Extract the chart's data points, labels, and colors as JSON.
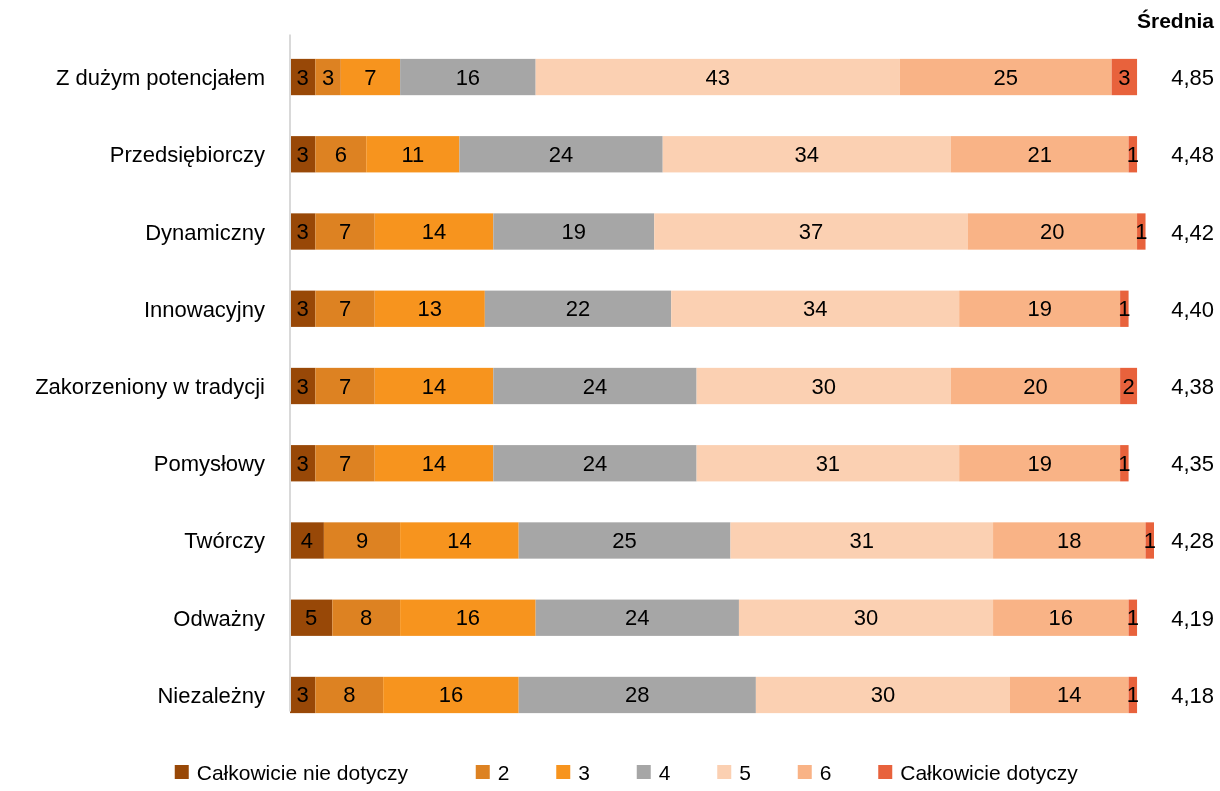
{
  "chart_data": {
    "type": "bar",
    "orientation": "horizontal",
    "stacked": true,
    "data_labels": true,
    "legend": "bottom",
    "tick_labels": "y",
    "categories": [
      "Z dużym potencjałem",
      "Przedsiębiorczy",
      "Dynamiczny",
      "Innowacyjny",
      "Zakorzeniony w tradycji",
      "Pomysłowy",
      "Twórczy",
      "Odważny",
      "Niezależny"
    ],
    "series": [
      {
        "name": "Całkowicie nie dotyczy",
        "color": "#984807",
        "values": [
          3,
          3,
          3,
          3,
          3,
          3,
          4,
          5,
          3
        ]
      },
      {
        "name": "2",
        "color": "#dd8222",
        "values": [
          3,
          6,
          7,
          7,
          7,
          7,
          9,
          8,
          8
        ]
      },
      {
        "name": "3",
        "color": "#f7941e",
        "values": [
          7,
          11,
          14,
          13,
          14,
          14,
          14,
          16,
          16
        ]
      },
      {
        "name": "4",
        "color": "#a6a6a6",
        "values": [
          16,
          24,
          19,
          22,
          24,
          24,
          25,
          24,
          28
        ]
      },
      {
        "name": "5",
        "color": "#fbd0b2",
        "values": [
          43,
          34,
          37,
          34,
          30,
          31,
          31,
          30,
          30
        ]
      },
      {
        "name": "6",
        "color": "#f9b386",
        "values": [
          25,
          21,
          20,
          19,
          20,
          19,
          18,
          16,
          14
        ]
      },
      {
        "name": "Całkowicie dotyczy",
        "color": "#e8623c",
        "values": [
          3,
          1,
          1,
          1,
          2,
          1,
          1,
          1,
          1
        ]
      }
    ],
    "annotations": [
      "Średnia",
      "4,85",
      "4,48",
      "4,42",
      "4,40",
      "4,38",
      "4,35",
      "4,28",
      "4,19",
      "4,18"
    ]
  }
}
